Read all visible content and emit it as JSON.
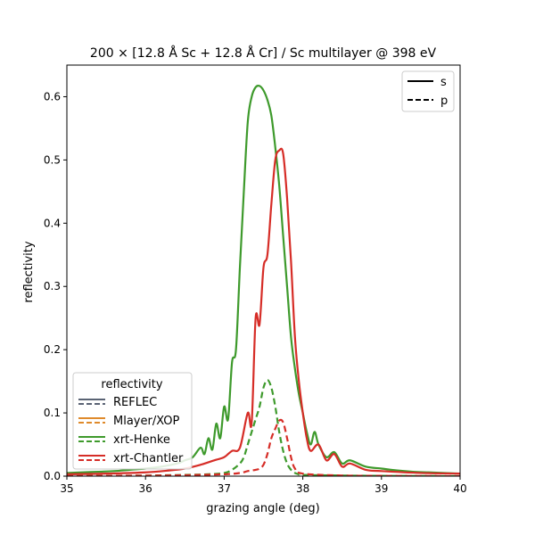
{
  "chart_data": {
    "type": "line",
    "title": "200 × [12.8 Å Sc + 12.8 Å Cr] / Sc multilayer @ 398 eV",
    "xlabel": "grazing angle (deg)",
    "ylabel": "reflectivity",
    "xlim": [
      35,
      40
    ],
    "ylim": [
      0,
      0.65
    ],
    "xticks": [
      35,
      36,
      37,
      38,
      39,
      40
    ],
    "yticks": [
      0.0,
      0.1,
      0.2,
      0.3,
      0.4,
      0.5,
      0.6
    ],
    "xtick_labels": [
      "35",
      "36",
      "37",
      "38",
      "39",
      "40"
    ],
    "ytick_labels": [
      "0.0",
      "0.1",
      "0.2",
      "0.3",
      "0.4",
      "0.5",
      "0.6"
    ],
    "legend_style": {
      "position": "upper right",
      "entries": [
        {
          "label": "s",
          "linestyle": "solid"
        },
        {
          "label": "p",
          "linestyle": "dashed"
        }
      ]
    },
    "legend_codes": {
      "title": "reflectivity",
      "position": "lower left",
      "entries": [
        {
          "label": "REFLEC",
          "color": "#5a6374"
        },
        {
          "label": "Mlayer/XOP",
          "color": "#df8a2b"
        },
        {
          "label": "xrt-Henke",
          "color": "#3e9a2c"
        },
        {
          "label": "xrt-Chantler",
          "color": "#d62d27"
        }
      ]
    },
    "series": [
      {
        "name": "xrt-Henke",
        "polarization": "s",
        "color": "#3e9a2c",
        "x": [
          35.0,
          35.2,
          35.4,
          35.6,
          35.8,
          36.0,
          36.2,
          36.4,
          36.5,
          36.6,
          36.7,
          36.75,
          36.8,
          36.85,
          36.9,
          36.95,
          37.0,
          37.05,
          37.1,
          37.15,
          37.2,
          37.25,
          37.3,
          37.35,
          37.4,
          37.45,
          37.5,
          37.55,
          37.6,
          37.65,
          37.7,
          37.75,
          37.8,
          37.85,
          37.9,
          37.95,
          38.0,
          38.05,
          38.1,
          38.15,
          38.2,
          38.3,
          38.4,
          38.5,
          38.6,
          38.8,
          39.0,
          39.2,
          39.4,
          39.6,
          39.8,
          40.0
        ],
        "values": [
          0.005,
          0.006,
          0.007,
          0.008,
          0.01,
          0.012,
          0.015,
          0.02,
          0.025,
          0.03,
          0.045,
          0.035,
          0.06,
          0.042,
          0.083,
          0.06,
          0.11,
          0.09,
          0.18,
          0.2,
          0.33,
          0.45,
          0.56,
          0.6,
          0.615,
          0.617,
          0.61,
          0.595,
          0.57,
          0.52,
          0.46,
          0.38,
          0.3,
          0.22,
          0.17,
          0.13,
          0.1,
          0.07,
          0.05,
          0.07,
          0.05,
          0.03,
          0.038,
          0.02,
          0.025,
          0.015,
          0.012,
          0.009,
          0.007,
          0.006,
          0.005,
          0.004
        ]
      },
      {
        "name": "xrt-Chantler",
        "polarization": "s",
        "color": "#d62d27",
        "x": [
          35.0,
          35.5,
          36.0,
          36.3,
          36.5,
          36.7,
          36.8,
          36.9,
          37.0,
          37.1,
          37.2,
          37.3,
          37.35,
          37.4,
          37.45,
          37.5,
          37.55,
          37.6,
          37.65,
          37.7,
          37.75,
          37.8,
          37.85,
          37.9,
          37.95,
          38.0,
          38.05,
          38.1,
          38.2,
          38.3,
          38.4,
          38.5,
          38.6,
          38.8,
          39.0,
          39.5,
          40.0
        ],
        "values": [
          0.003,
          0.004,
          0.006,
          0.009,
          0.012,
          0.018,
          0.022,
          0.026,
          0.03,
          0.04,
          0.045,
          0.1,
          0.085,
          0.25,
          0.24,
          0.33,
          0.35,
          0.43,
          0.5,
          0.515,
          0.51,
          0.44,
          0.34,
          0.22,
          0.15,
          0.1,
          0.06,
          0.04,
          0.05,
          0.025,
          0.035,
          0.015,
          0.02,
          0.01,
          0.008,
          0.005,
          0.004
        ]
      },
      {
        "name": "xrt-Henke",
        "polarization": "p",
        "color": "#3e9a2c",
        "x": [
          35.0,
          36.0,
          36.5,
          36.8,
          37.0,
          37.1,
          37.2,
          37.25,
          37.3,
          37.35,
          37.4,
          37.45,
          37.5,
          37.55,
          37.6,
          37.65,
          37.7,
          37.75,
          37.8,
          37.85,
          37.9,
          37.95,
          38.0,
          38.5,
          39.0,
          40.0
        ],
        "values": [
          0.0,
          0.001,
          0.002,
          0.003,
          0.005,
          0.01,
          0.02,
          0.03,
          0.05,
          0.07,
          0.09,
          0.11,
          0.14,
          0.152,
          0.14,
          0.11,
          0.07,
          0.04,
          0.02,
          0.01,
          0.005,
          0.003,
          0.002,
          0.001,
          0.0005,
          0.0
        ]
      },
      {
        "name": "xrt-Chantler",
        "polarization": "p",
        "color": "#d62d27",
        "x": [
          35.0,
          36.0,
          36.5,
          37.0,
          37.2,
          37.3,
          37.4,
          37.45,
          37.5,
          37.55,
          37.6,
          37.65,
          37.7,
          37.75,
          37.8,
          37.85,
          37.9,
          38.0,
          38.5,
          39.0,
          40.0
        ],
        "values": [
          0.0,
          0.0008,
          0.0015,
          0.003,
          0.005,
          0.008,
          0.01,
          0.012,
          0.018,
          0.035,
          0.06,
          0.075,
          0.088,
          0.085,
          0.06,
          0.03,
          0.012,
          0.004,
          0.001,
          0.0005,
          0.0
        ]
      }
    ]
  }
}
